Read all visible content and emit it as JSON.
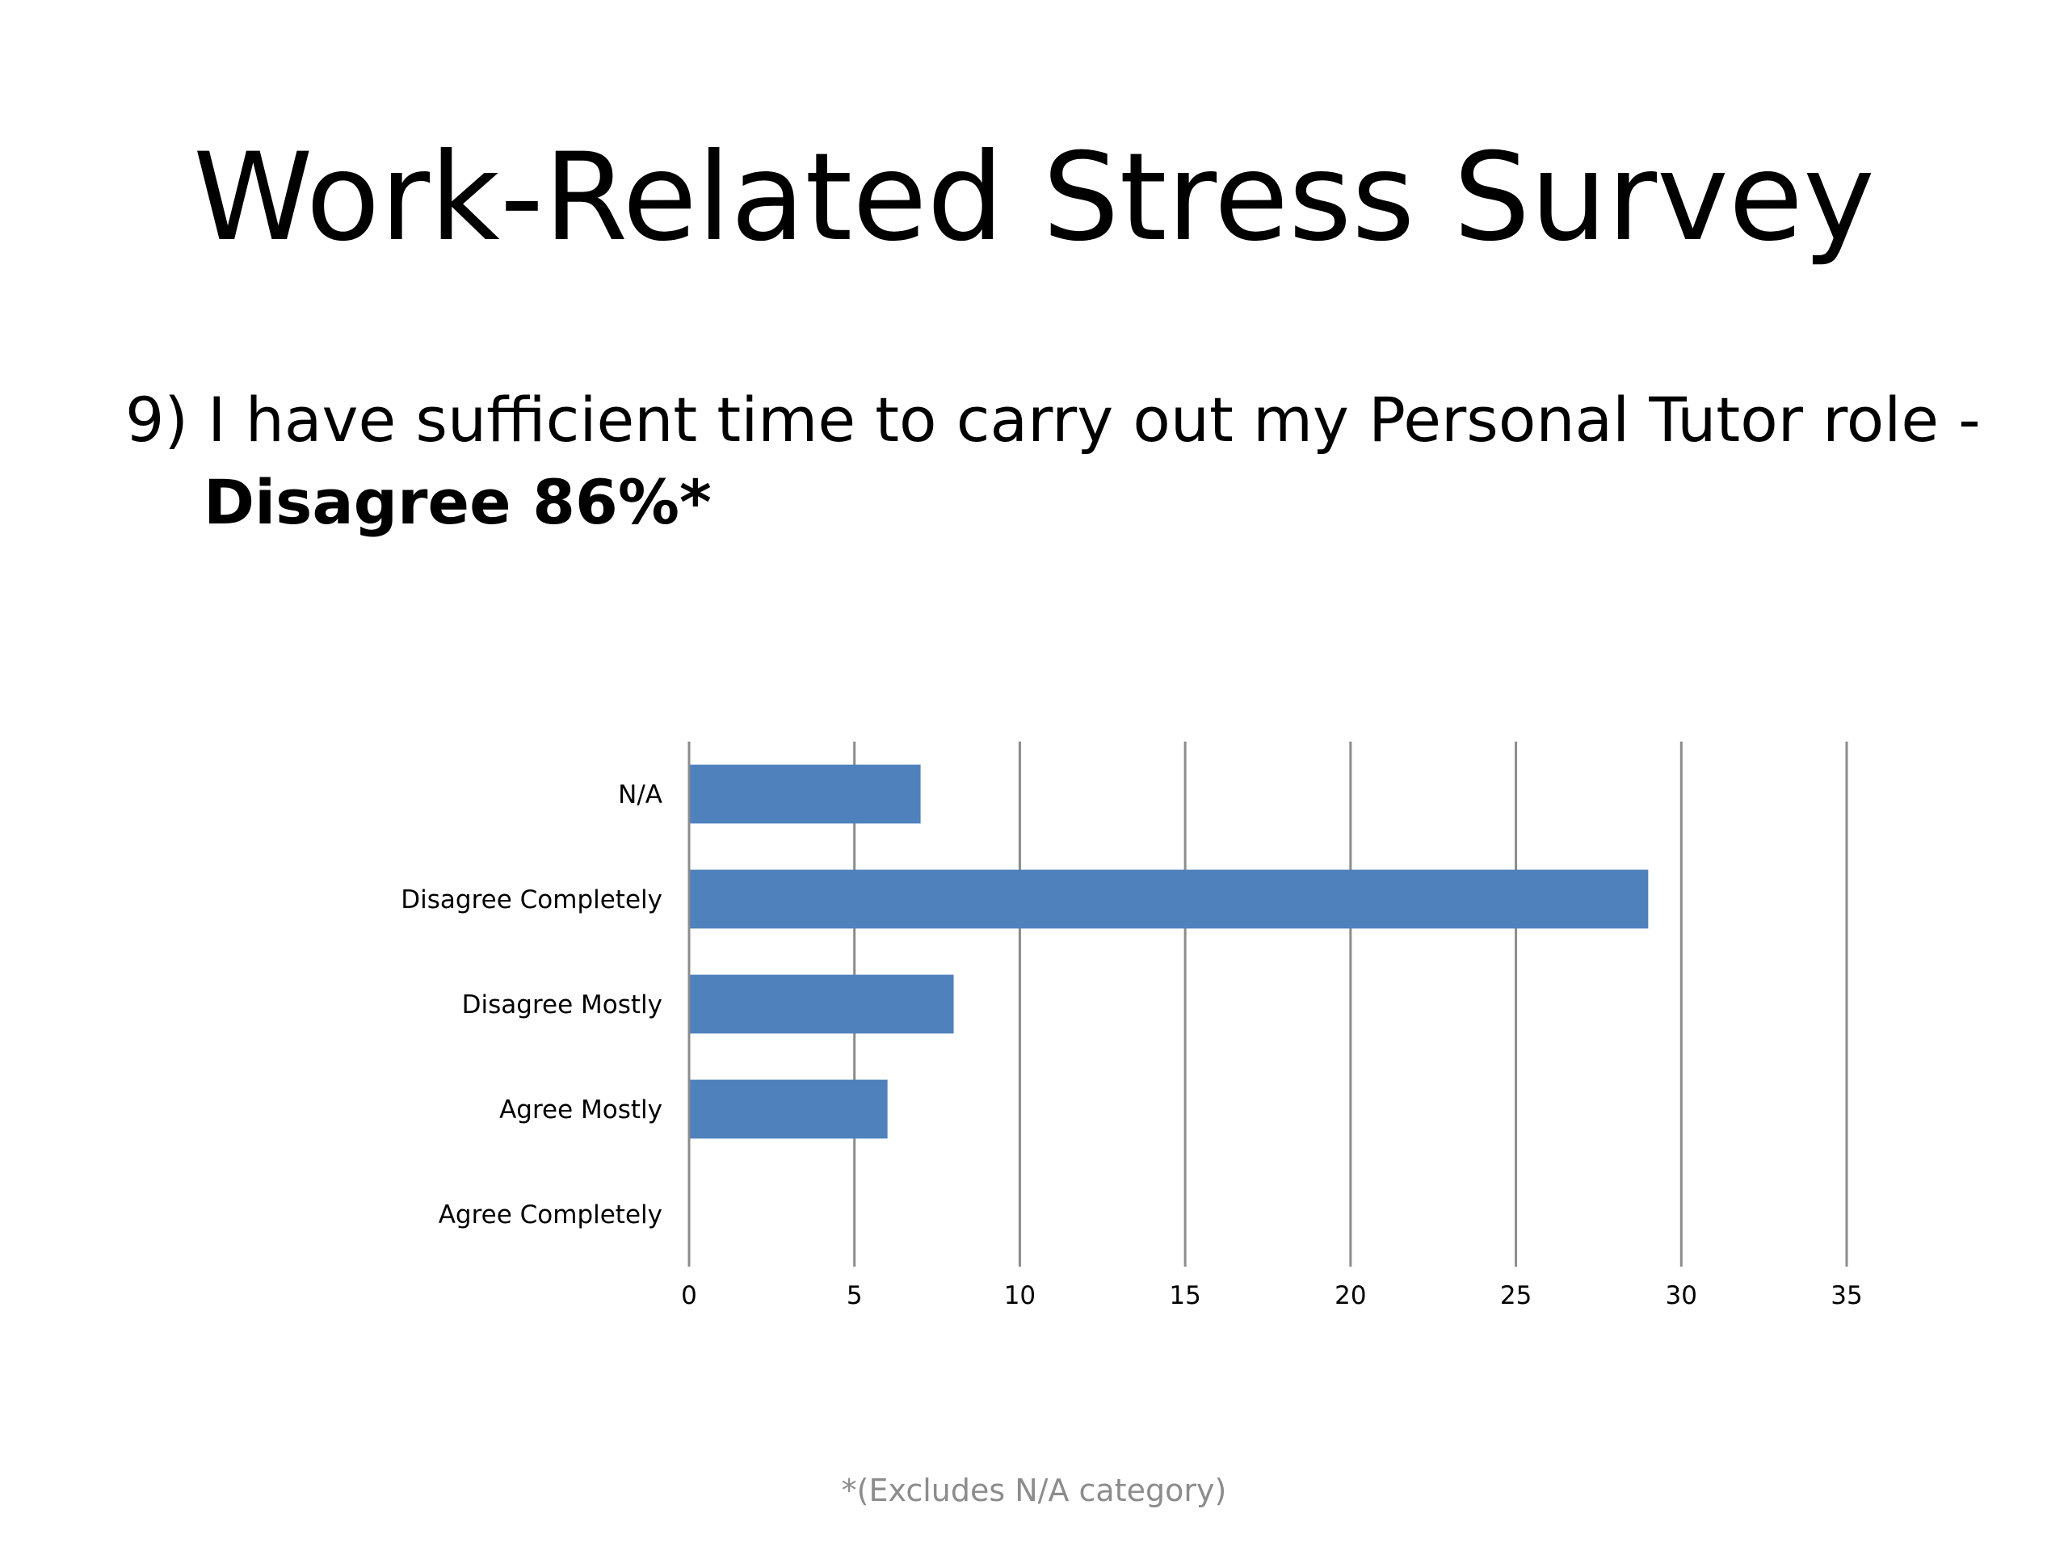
{
  "slide": {
    "title": "Work-Related Stress Survey",
    "question": "9) I have sufficient time to carry out my Personal Tutor role -",
    "highlight": "Disagree 86%*",
    "footnote": "*(Excludes N/A category)"
  },
  "chart_data": {
    "type": "bar",
    "orientation": "horizontal",
    "categories": [
      "N/A",
      "Disagree Completely",
      "Disagree Mostly",
      "Agree Mostly",
      "Agree Completely"
    ],
    "values": [
      7,
      29,
      8,
      6,
      0
    ],
    "xlim": [
      0,
      35
    ],
    "xticks": [
      0,
      5,
      10,
      15,
      20,
      25,
      30,
      35
    ],
    "grid": "vertical",
    "legend": "none",
    "bar_color": "#4f81bd",
    "gridline_color": "#8c8c8c"
  }
}
